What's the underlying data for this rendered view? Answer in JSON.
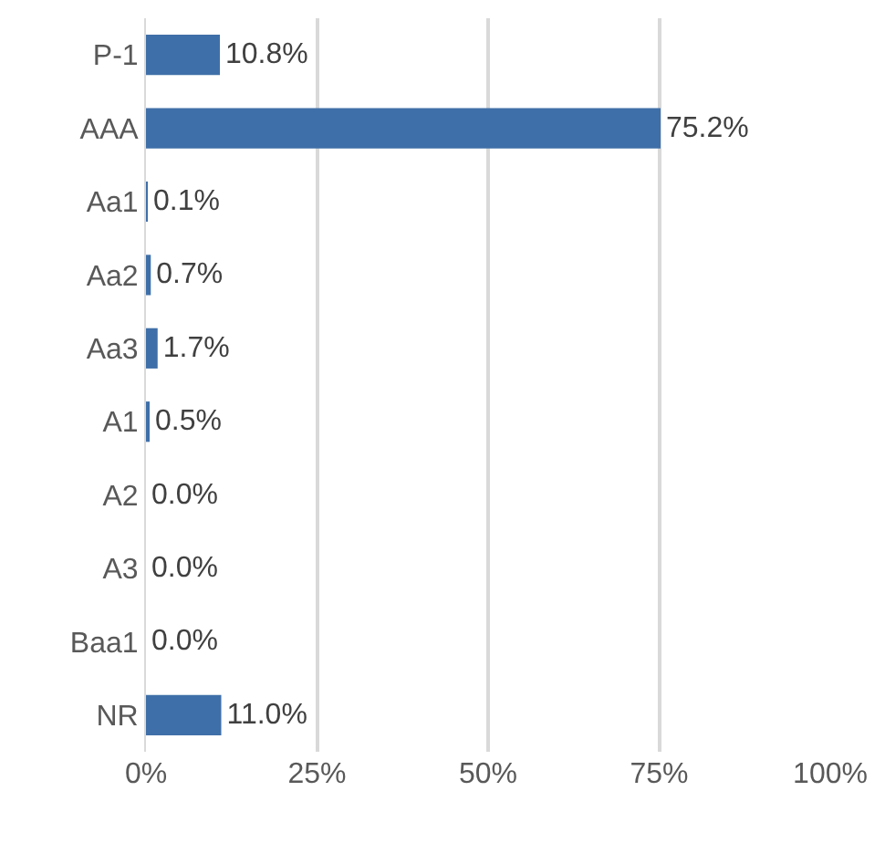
{
  "chart_data": {
    "type": "bar",
    "orientation": "horizontal",
    "categories": [
      "P-1",
      "AAA",
      "Aa1",
      "Aa2",
      "Aa3",
      "A1",
      "A2",
      "A3",
      "Baa1",
      "NR"
    ],
    "values": [
      10.8,
      75.2,
      0.1,
      0.7,
      1.7,
      0.5,
      0.0,
      0.0,
      0.0,
      11.0
    ],
    "value_labels": [
      "10.8%",
      "75.2%",
      "0.1%",
      "0.7%",
      "1.7%",
      "0.5%",
      "0.0%",
      "0.0%",
      "0.0%",
      "11.0%"
    ],
    "color": "#3f6fa8",
    "xlim": [
      0,
      100
    ],
    "xticks": [
      {
        "value": 0,
        "label": "0%"
      },
      {
        "value": 25,
        "label": "25%"
      },
      {
        "value": 50,
        "label": "50%"
      },
      {
        "value": 75,
        "label": "75%"
      },
      {
        "value": 100,
        "label": "100%"
      }
    ],
    "grid": "x"
  }
}
